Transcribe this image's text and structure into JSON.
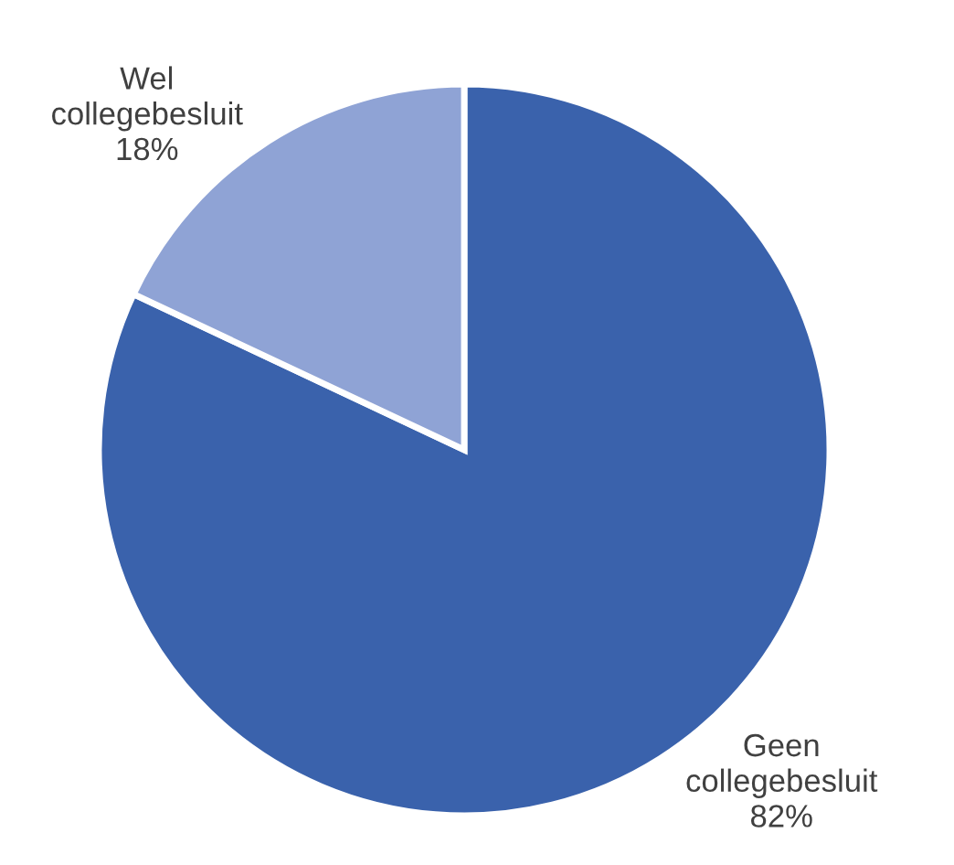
{
  "chart_data": {
    "type": "pie",
    "categories": [
      "Geen collegebesluit",
      "Wel collegebesluit"
    ],
    "values": [
      82,
      18
    ],
    "colors": [
      "#3a62ac",
      "#8fa3d5"
    ],
    "value_labels": [
      "82%",
      "18%"
    ]
  }
}
